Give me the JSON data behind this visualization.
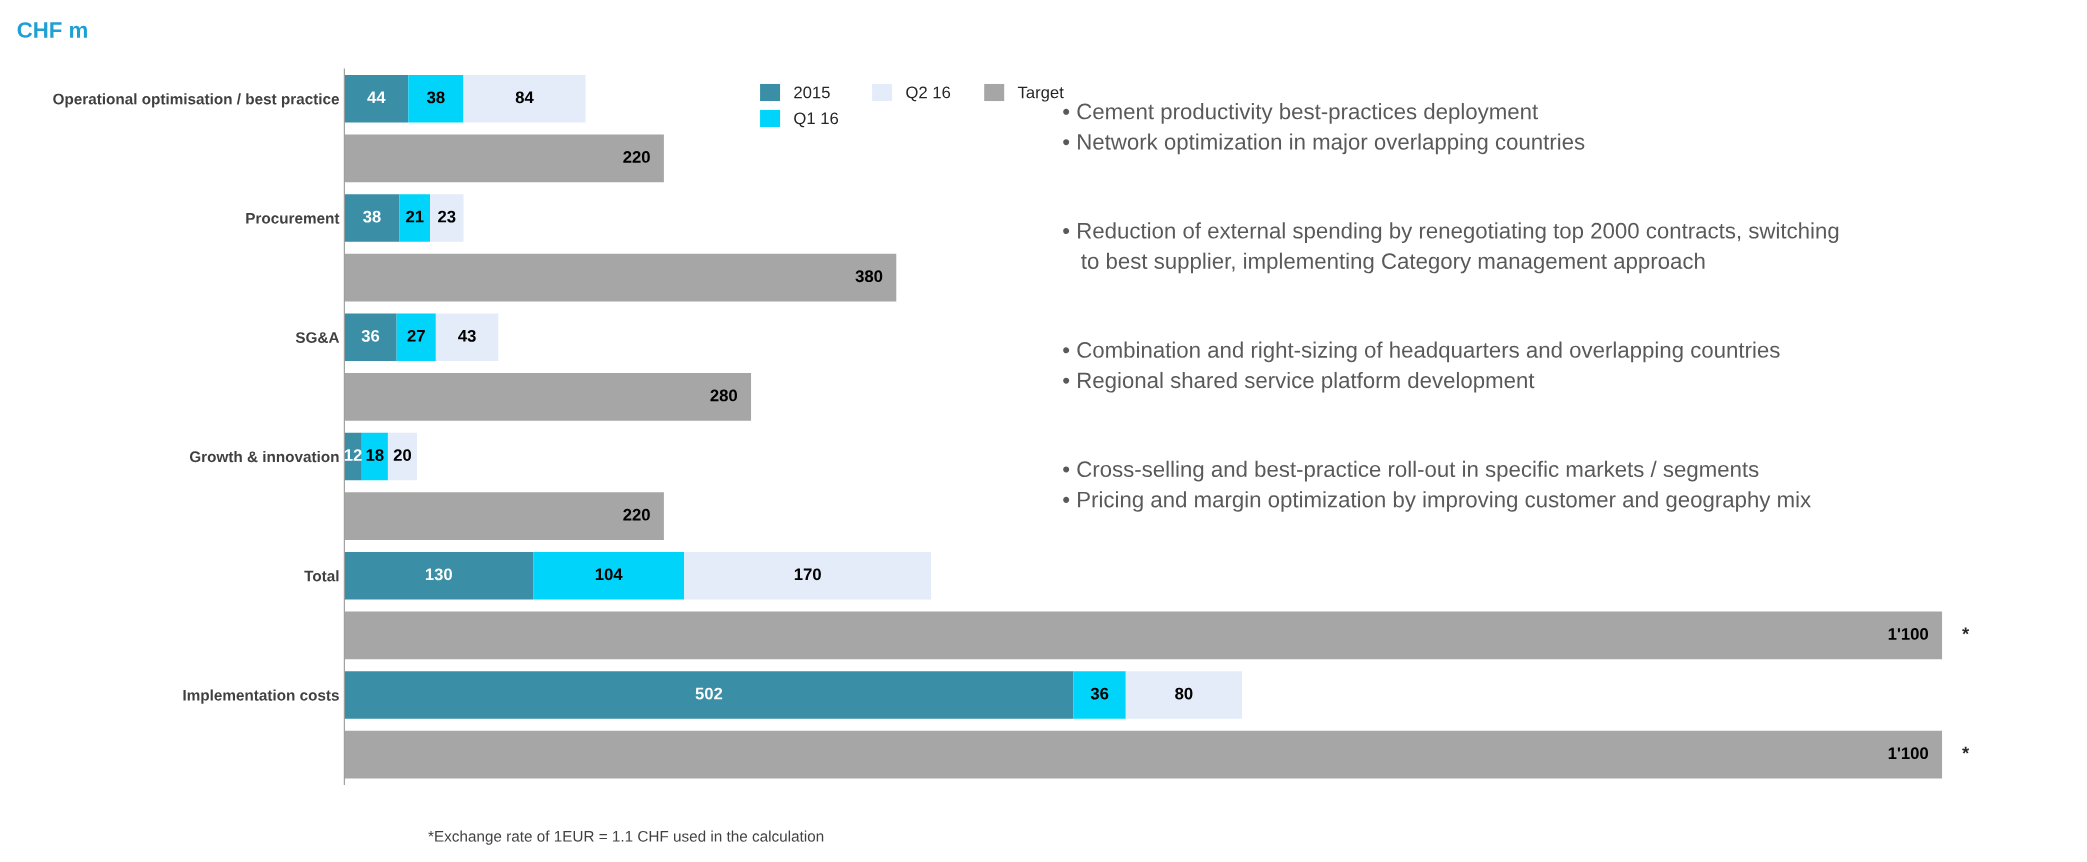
{
  "chart_data": {
    "type": "bar",
    "orientation": "horizontal",
    "stacked": true,
    "title": "CHF m",
    "categories": [
      "Operational optimisation / best practice",
      null,
      "Procurement",
      null,
      "SG&A",
      null,
      "Growth & innovation",
      null,
      "Total",
      null,
      "Implementation costs",
      null
    ],
    "series": [
      {
        "name": "2015",
        "color": "#3a8ea5",
        "values": [
          44,
          null,
          38,
          null,
          36,
          null,
          12,
          null,
          130,
          null,
          502,
          null
        ]
      },
      {
        "name": "Q1 16",
        "color": "#00d4fa",
        "values": [
          38,
          null,
          21,
          null,
          27,
          null,
          18,
          null,
          104,
          null,
          36,
          null
        ]
      },
      {
        "name": "Q2 16",
        "color": "#e3ecf8",
        "values": [
          84,
          null,
          23,
          null,
          43,
          null,
          20,
          null,
          170,
          null,
          80,
          null
        ]
      },
      {
        "name": "Target",
        "color": "#a6a6a6",
        "values": [
          null,
          220,
          null,
          380,
          null,
          280,
          null,
          220,
          null,
          1100,
          null,
          1100
        ],
        "value_labels": [
          null,
          "220",
          null,
          "380",
          null,
          "280",
          null,
          "220",
          null,
          "1'100",
          null,
          "1'100"
        ]
      }
    ],
    "tick_labels": "y",
    "data_labels": true,
    "legend": "top",
    "grid": false,
    "annotations": [
      "• Cement productivity best-practices deployment\n• Network optimization in major overlapping countries",
      "• Reduction of external spending by renegotiating top 2000 contracts, switching\n   to best supplier, implementing Category management approach",
      "• Combination and right-sizing of headquarters and overlapping countries\n• Regional shared service platform development",
      "• Cross-selling and best-practice roll-out in specific markets / segments\n• Pricing and margin optimization by improving customer and geography mix",
      {
        "text": "*",
        "x": 1100
      },
      {
        "text": "*",
        "x": 1100
      },
      "*Exchange rate of 1EUR = 1.1 CHF used in the calculation"
    ]
  }
}
